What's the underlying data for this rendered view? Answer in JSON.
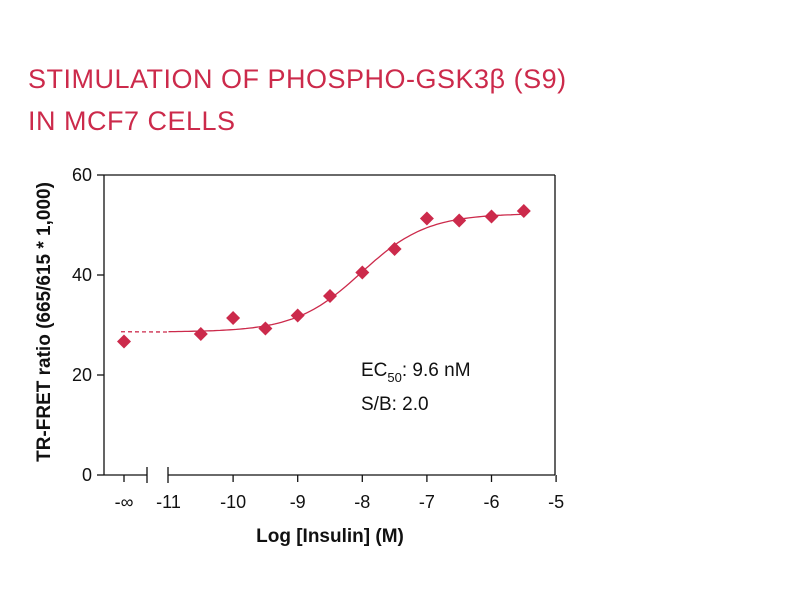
{
  "chart_data": {
    "type": "scatter",
    "title_lines": [
      "STIMULATION OF PHOSPHO-GSK3β (S9)",
      "IN MCF7 CELLS"
    ],
    "xlabel": "Log [Insulin] (M)",
    "ylabel": "TR-FRET ratio (665/615 * 1,000)",
    "ylim": [
      0,
      60
    ],
    "xlim": [
      -11,
      -5
    ],
    "y_ticks": [
      0,
      20,
      40,
      60
    ],
    "x_ticks": [
      "-∞",
      "-11",
      "-10",
      "-9",
      "-8",
      "-7",
      "-6",
      "-5"
    ],
    "axis_break": true,
    "grid": false,
    "points": [
      {
        "x": "-∞",
        "y": 26.7
      },
      {
        "x": -10.5,
        "y": 28.2
      },
      {
        "x": -10.0,
        "y": 31.4
      },
      {
        "x": -9.5,
        "y": 29.3
      },
      {
        "x": -9.0,
        "y": 31.9
      },
      {
        "x": -8.5,
        "y": 35.8
      },
      {
        "x": -8.0,
        "y": 40.5
      },
      {
        "x": -7.5,
        "y": 45.2
      },
      {
        "x": -7.0,
        "y": 51.3
      },
      {
        "x": -6.5,
        "y": 50.9
      },
      {
        "x": -6.0,
        "y": 51.7
      },
      {
        "x": -5.5,
        "y": 52.8
      }
    ],
    "annotations": {
      "ec50_prefix": "EC",
      "ec50_sub": "50",
      "ec50_value": ": 9.6 nM",
      "sb": "S/B: 2.0"
    },
    "colors": {
      "points": "#cc2a4b",
      "fit": "#cc2a4b",
      "title": "#cc2a4b",
      "axis": "#111111"
    }
  }
}
